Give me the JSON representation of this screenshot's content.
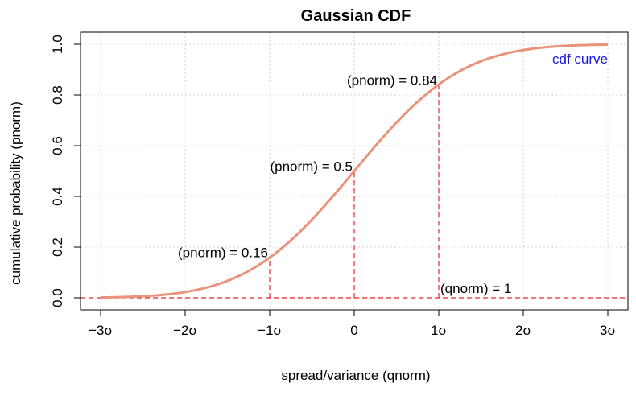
{
  "chart_data": {
    "type": "line",
    "title": "Gaussian CDF",
    "xlabel": "spread/variance (qnorm)",
    "ylabel": "cumulative probability (pnorm)",
    "xlim": [
      -3,
      3
    ],
    "ylim": [
      0,
      1
    ],
    "x_ticks": [
      -3,
      -2,
      -1,
      0,
      1,
      2,
      3
    ],
    "x_tick_labels": [
      "−3σ",
      "−2σ",
      "−1σ",
      "0",
      "1σ",
      "2σ",
      "3σ"
    ],
    "y_ticks": [
      0,
      0.2,
      0.4,
      0.6,
      0.8,
      1
    ],
    "y_tick_labels": [
      "0.0",
      "0.2",
      "0.4",
      "0.6",
      "0.8",
      "1.0"
    ],
    "grid": true,
    "series": [
      {
        "name": "cdf curve",
        "color": "#E8937A",
        "x": [
          -3,
          -2.5,
          -2,
          -1.5,
          -1,
          -0.5,
          0,
          0.5,
          1,
          1.5,
          2,
          2.5,
          3
        ],
        "y": [
          0.0013,
          0.0062,
          0.0228,
          0.0668,
          0.1587,
          0.3085,
          0.5,
          0.6915,
          0.8413,
          0.9332,
          0.9772,
          0.9938,
          0.9987
        ]
      }
    ],
    "legend": {
      "text": "cdf curve",
      "color": "#1A1AE6",
      "position": "top-right"
    },
    "reference_color": "#E8282C",
    "reference_lines": {
      "horizontal_y": 0,
      "vertical_x": [
        -1,
        0,
        1
      ]
    },
    "annotations": [
      {
        "text": "(pnorm) = 0.16",
        "x": -1,
        "y": 0.16
      },
      {
        "text": "(pnorm) = 0.5",
        "x": 0,
        "y": 0.5
      },
      {
        "text": "(pnorm) = 0.84",
        "x": 1,
        "y": 0.84
      },
      {
        "text": "(qnorm) = 1",
        "x": 1,
        "y": 0
      }
    ]
  }
}
